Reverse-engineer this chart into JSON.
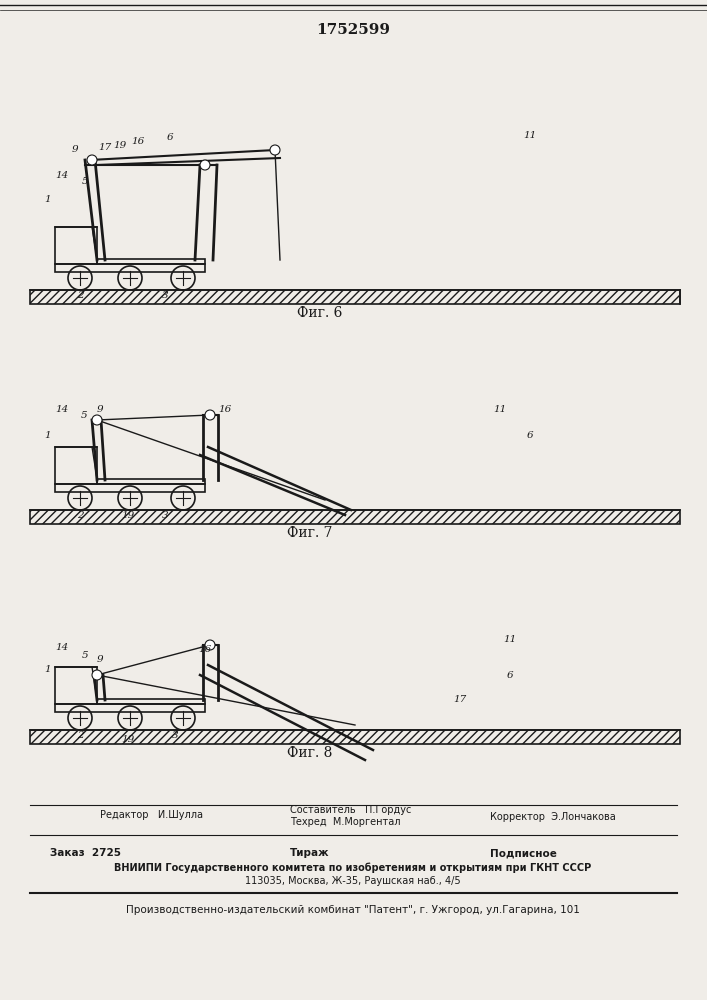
{
  "title": "1752599",
  "fig_labels": [
    "Фиг. 6",
    "Фиг. 7",
    "Фиг. 8"
  ],
  "footer_line1_left": "Редактор   И.Шулла",
  "footer_line1_center_top": "Составитель   П.Гордус",
  "footer_line1_center_bot": "Техред  М.Моргентал",
  "footer_line1_right": "Корректор  Э.Лончакова",
  "footer_line2_left": "Заказ  2725",
  "footer_line2_center": "Тираж",
  "footer_line2_right": "Подписное",
  "footer_line3": "ВНИИПИ Государственного комитета по изобретениям и открытиям при ГКНТ СССР",
  "footer_line4": "113035, Москва, Ж-35, Раушская наб., 4/5",
  "footer_line5": "Производственно-издательский комбинат \"Патент\", г. Ужгород, ул.Гагарина, 101",
  "bg_color": "#f0ede8",
  "line_color": "#1a1a1a",
  "hatch_color": "#1a1a1a"
}
